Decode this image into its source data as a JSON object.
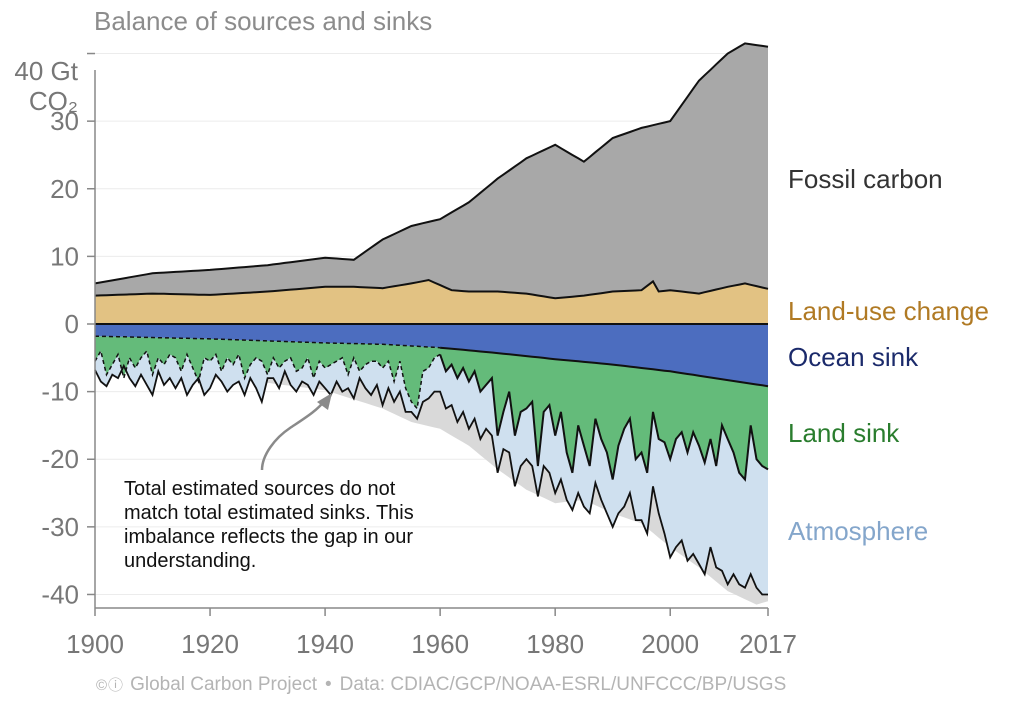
{
  "title": "Balance of sources and sinks",
  "units": {
    "top": "40 Gt",
    "bottom": "CO₂"
  },
  "annotation": "Total estimated sources do not match total estimated sinks. This imbalance reflects the gap in our understanding.",
  "footer": {
    "cc": "©ⓘ",
    "org": "Global Carbon Project",
    "sep": "•",
    "data": "Data: CDIAC/GCP/NOAA-ESRL/UNFCCC/BP/USGS"
  },
  "colors": {
    "fossil": "#a8a8a8",
    "land_use": "#e2c283",
    "ocean": "#4c6dbf",
    "land_sink": "#64bb7a",
    "atmosphere": "#cfe0ef",
    "imbalance": "#d9d9d9",
    "label_fossil": "#333333",
    "label_land_use": "#b07a24",
    "label_ocean": "#1b2a6b",
    "label_land_sink": "#2a7d2e",
    "label_atmosphere": "#84a6cb"
  },
  "chart_data": {
    "type": "area",
    "xlabel": "",
    "ylabel": "",
    "xlim": [
      1900,
      2017
    ],
    "ylim": [
      -42,
      42
    ],
    "x_ticks": [
      1900,
      1920,
      1940,
      1960,
      1980,
      2000,
      2017
    ],
    "y_ticks": [
      {
        "value": 30,
        "label": "30"
      },
      {
        "value": 20,
        "label": "20"
      },
      {
        "value": 10,
        "label": "10"
      },
      {
        "value": 0,
        "label": "0"
      },
      {
        "value": -10,
        "label": "-10"
      },
      {
        "value": -20,
        "label": "-20"
      },
      {
        "value": -30,
        "label": "-30"
      },
      {
        "value": -40,
        "label": "-40"
      }
    ],
    "series": [
      {
        "name": "Fossil carbon",
        "key": "fossil",
        "x": [
          1900,
          1910,
          1920,
          1930,
          1940,
          1945,
          1950,
          1955,
          1960,
          1965,
          1970,
          1975,
          1980,
          1985,
          1990,
          1995,
          2000,
          2005,
          2010,
          2013,
          2017
        ],
        "top": [
          6.0,
          7.5,
          8.0,
          8.7,
          9.8,
          9.5,
          12.5,
          14.5,
          15.5,
          18.0,
          21.5,
          24.5,
          26.5,
          24.0,
          27.5,
          29.0,
          30.0,
          36.0,
          40.0,
          41.5,
          41.0
        ]
      },
      {
        "name": "Land-use change",
        "key": "land_use",
        "x": [
          1900,
          1910,
          1920,
          1930,
          1940,
          1945,
          1950,
          1955,
          1958,
          1962,
          1965,
          1970,
          1975,
          1980,
          1985,
          1990,
          1995,
          1997,
          1998,
          2000,
          2005,
          2010,
          2013,
          2017
        ],
        "values": [
          4.2,
          4.5,
          4.3,
          4.8,
          5.5,
          5.5,
          5.3,
          6.0,
          6.5,
          5.0,
          4.8,
          4.8,
          4.5,
          3.8,
          4.2,
          4.8,
          5.0,
          6.3,
          4.8,
          5.0,
          4.5,
          5.5,
          6.0,
          5.2
        ]
      },
      {
        "name": "Ocean sink",
        "key": "ocean",
        "x": [
          1900,
          1920,
          1940,
          1950,
          1960,
          1970,
          1980,
          1990,
          2000,
          2010,
          2017
        ],
        "bottom": [
          -1.8,
          -2.2,
          -2.8,
          -3.0,
          -3.5,
          -4.3,
          -5.2,
          -6.0,
          -7.0,
          -8.3,
          -9.2
        ]
      },
      {
        "name": "Land sink",
        "key": "land_sink",
        "x": [
          1900,
          1901,
          1902,
          1903,
          1904,
          1905,
          1906,
          1907,
          1908,
          1909,
          1910,
          1911,
          1912,
          1913,
          1914,
          1915,
          1916,
          1917,
          1918,
          1919,
          1920,
          1921,
          1922,
          1923,
          1924,
          1925,
          1926,
          1927,
          1928,
          1929,
          1930,
          1931,
          1932,
          1933,
          1934,
          1935,
          1936,
          1937,
          1938,
          1939,
          1940,
          1941,
          1942,
          1943,
          1944,
          1945,
          1946,
          1947,
          1948,
          1949,
          1950,
          1951,
          1952,
          1953,
          1954,
          1955,
          1956,
          1957,
          1958,
          1959,
          1960,
          1961,
          1962,
          1963,
          1964,
          1965,
          1966,
          1967,
          1968,
          1969,
          1970,
          1971,
          1972,
          1973,
          1974,
          1975,
          1976,
          1977,
          1978,
          1979,
          1980,
          1981,
          1982,
          1983,
          1984,
          1985,
          1986,
          1987,
          1988,
          1989,
          1990,
          1991,
          1992,
          1993,
          1994,
          1995,
          1996,
          1997,
          1998,
          1999,
          2000,
          2001,
          2002,
          2003,
          2004,
          2005,
          2006,
          2007,
          2008,
          2009,
          2010,
          2011,
          2012,
          2013,
          2014,
          2015,
          2016,
          2017
        ],
        "bottom": [
          -5.5,
          -4,
          -7.5,
          -6,
          -4.5,
          -8,
          -5,
          -6.5,
          -5,
          -4,
          -7.5,
          -5,
          -6,
          -4.5,
          -5,
          -7,
          -4.5,
          -6.5,
          -8.5,
          -5,
          -5.5,
          -4.5,
          -7,
          -5,
          -6,
          -4.5,
          -8,
          -6,
          -5,
          -5.5,
          -7.5,
          -5,
          -6.5,
          -5.5,
          -5,
          -7,
          -6.5,
          -5,
          -8,
          -5.5,
          -6.5,
          -6,
          -5.5,
          -5,
          -7.5,
          -5,
          -7,
          -6,
          -5.5,
          -5.5,
          -6.5,
          -5.5,
          -8.5,
          -5.5,
          -9.5,
          -11.5,
          -12.5,
          -7,
          -6.5,
          -5,
          -4.5,
          -7,
          -6,
          -8,
          -6.5,
          -8.5,
          -7,
          -10,
          -9,
          -8,
          -16.5,
          -13,
          -10,
          -16.5,
          -13,
          -12.5,
          -11.5,
          -21,
          -13,
          -12,
          -16.5,
          -13,
          -19,
          -22,
          -15,
          -18,
          -21,
          -14,
          -17,
          -19,
          -23,
          -18,
          -15.5,
          -14,
          -20,
          -19,
          -22,
          -13,
          -17,
          -17.5,
          -20,
          -17,
          -16,
          -19,
          -16,
          -18,
          -20.5,
          -17,
          -21,
          -15,
          -17,
          -19,
          -22,
          -23,
          -15,
          -20,
          -21,
          -21.5
        ]
      },
      {
        "name": "Atmosphere",
        "key": "atmosphere",
        "x": [
          1900,
          1901,
          1902,
          1903,
          1904,
          1905,
          1906,
          1907,
          1908,
          1909,
          1910,
          1911,
          1912,
          1913,
          1914,
          1915,
          1916,
          1917,
          1918,
          1919,
          1920,
          1921,
          1922,
          1923,
          1924,
          1925,
          1926,
          1927,
          1928,
          1929,
          1930,
          1931,
          1932,
          1933,
          1934,
          1935,
          1936,
          1937,
          1938,
          1939,
          1940,
          1941,
          1942,
          1943,
          1944,
          1945,
          1946,
          1947,
          1948,
          1949,
          1950,
          1951,
          1952,
          1953,
          1954,
          1955,
          1956,
          1957,
          1958,
          1959,
          1960,
          1961,
          1962,
          1963,
          1964,
          1965,
          1966,
          1967,
          1968,
          1969,
          1970,
          1971,
          1972,
          1973,
          1974,
          1975,
          1976,
          1977,
          1978,
          1979,
          1980,
          1981,
          1982,
          1983,
          1984,
          1985,
          1986,
          1987,
          1988,
          1989,
          1990,
          1991,
          1992,
          1993,
          1994,
          1995,
          1996,
          1997,
          1998,
          1999,
          2000,
          2001,
          2002,
          2003,
          2004,
          2005,
          2006,
          2007,
          2008,
          2009,
          2010,
          2011,
          2012,
          2013,
          2014,
          2015,
          2016,
          2017
        ],
        "bottom": [
          -6.8,
          -8.5,
          -9.2,
          -7.5,
          -8,
          -6.2,
          -8,
          -9.2,
          -7.5,
          -9,
          -10.5,
          -7,
          -9,
          -8,
          -9.5,
          -8,
          -10.5,
          -9,
          -8,
          -10.5,
          -9.5,
          -7.5,
          -8.5,
          -10,
          -9,
          -8.5,
          -10.5,
          -8,
          -9.5,
          -11.5,
          -8,
          -8,
          -9.5,
          -7,
          -9,
          -10,
          -8.5,
          -9,
          -10.5,
          -8.5,
          -9.5,
          -10.5,
          -8.5,
          -10,
          -9.5,
          -11,
          -8,
          -9.5,
          -10.5,
          -9,
          -12,
          -9.5,
          -11.5,
          -10,
          -13,
          -13,
          -14,
          -11.5,
          -11,
          -10,
          -10,
          -12.5,
          -12,
          -14.5,
          -13,
          -15.5,
          -14,
          -17,
          -15.5,
          -16.5,
          -22,
          -18.5,
          -19,
          -24,
          -21,
          -20,
          -21,
          -25.5,
          -21,
          -22,
          -25,
          -23,
          -26,
          -27.5,
          -25,
          -27,
          -28,
          -23.5,
          -26,
          -28,
          -30,
          -28,
          -27,
          -25,
          -29,
          -29,
          -31,
          -24,
          -28,
          -31,
          -34.5,
          -33,
          -32,
          -35,
          -34,
          -35.5,
          -37,
          -33,
          -36,
          -36.5,
          -38.5,
          -37,
          -38.5,
          -39,
          -37,
          -39,
          -40,
          -40
        ]
      },
      {
        "name": "Imbalance",
        "key": "imbalance",
        "x": [
          1900,
          1910,
          1920,
          1930,
          1940,
          1950,
          1955,
          1960,
          1965,
          1970,
          1975,
          1980,
          1985,
          1990,
          1995,
          2000,
          2005,
          2010,
          2015,
          2017
        ],
        "bottom": [
          -6,
          -7.5,
          -8,
          -8.7,
          -9.8,
          -12.5,
          -14.5,
          -15.5,
          -18,
          -21.5,
          -24.5,
          -26.5,
          -26,
          -28,
          -29.5,
          -33,
          -36,
          -39.5,
          -41.5,
          -41
        ]
      }
    ],
    "legend": "right-side labels",
    "grid": true
  }
}
